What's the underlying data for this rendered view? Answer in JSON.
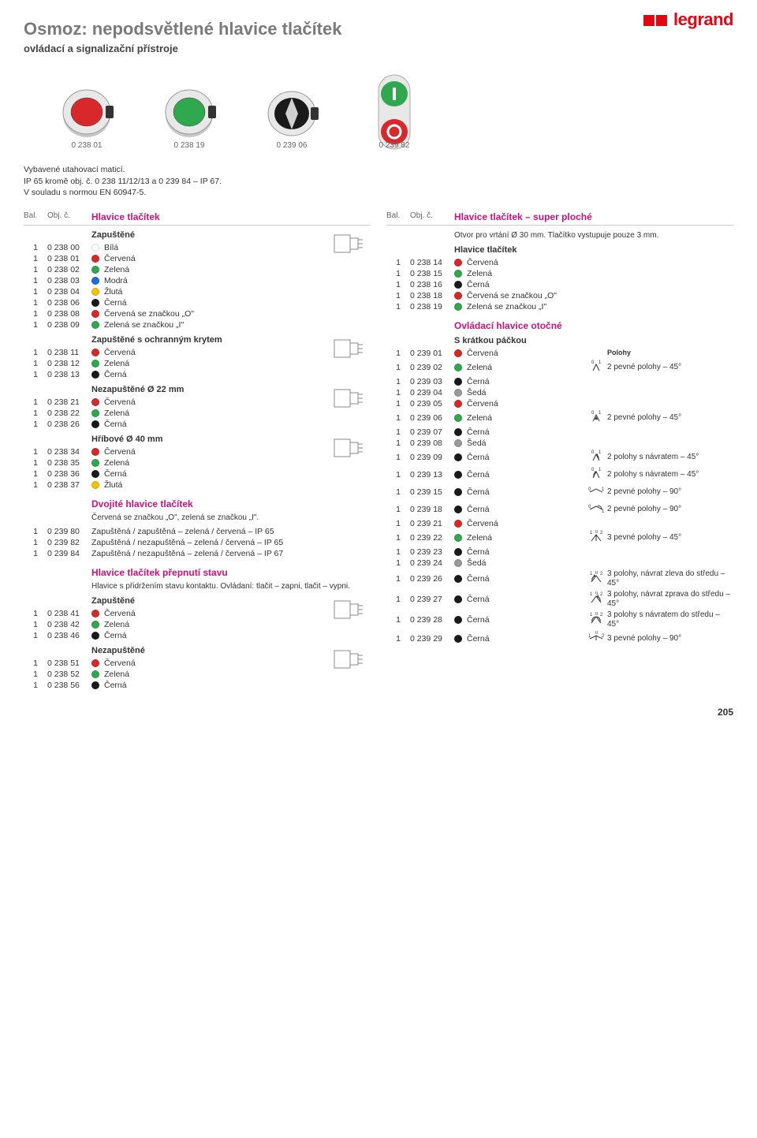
{
  "brand": "legrand",
  "title": "Osmoz: nepodsvětlené hlavice tlačítek",
  "subtitle": "ovládací a signalizační přístroje",
  "product_images": [
    {
      "label": "0 238 01",
      "kind": "button",
      "color": "#d9282b"
    },
    {
      "label": "0 238 19",
      "kind": "button",
      "color": "#2fa84f"
    },
    {
      "label": "0 239 06",
      "kind": "rotary",
      "color": "#2fa84f"
    },
    {
      "label": "0 239 82",
      "kind": "double",
      "color": "#2fa84f"
    }
  ],
  "intro1": "Vybavené utahovací maticí.",
  "intro2": "IP 65 kromě obj. č. 0 238 11/12/13 a 0 239 84 – IP 67.",
  "intro3": "V souladu s normou EN 60947-5.",
  "head_bal": "Bal.",
  "head_obj": "Obj. č.",
  "left_header": "Hlavice tlačítek",
  "right_header": "Hlavice tlačítek – super ploché",
  "colors": {
    "bila": "#ffffff",
    "cervena": "#d9282b",
    "zelena": "#2fa84f",
    "modra": "#1e6fd6",
    "zluta": "#f5c400",
    "cerna": "#1a1a1a",
    "seda": "#9a9a9a"
  },
  "left": [
    {
      "type": "sub",
      "text": "Zapuštěné"
    },
    {
      "bal": "1",
      "obj": "0 238 00",
      "dot": "bila",
      "text": "Bílá"
    },
    {
      "bal": "1",
      "obj": "0 238 01",
      "dot": "cervena",
      "text": "Červená"
    },
    {
      "bal": "1",
      "obj": "0 238 02",
      "dot": "zelena",
      "text": "Zelená"
    },
    {
      "bal": "1",
      "obj": "0 238 03",
      "dot": "modra",
      "text": "Modrá"
    },
    {
      "bal": "1",
      "obj": "0 238 04",
      "dot": "zluta",
      "text": "Žlutá"
    },
    {
      "bal": "1",
      "obj": "0 238 06",
      "dot": "cerna",
      "text": "Černá"
    },
    {
      "bal": "1",
      "obj": "0 238 08",
      "dot": "cervena",
      "text": "Červená se značkou „O\""
    },
    {
      "bal": "1",
      "obj": "0 238 09",
      "dot": "zelena",
      "text": "Zelená se značkou „I\""
    },
    {
      "type": "sub",
      "text": "Zapuštěné s ochranným krytem"
    },
    {
      "bal": "1",
      "obj": "0 238 11",
      "dot": "cervena",
      "text": "Červená"
    },
    {
      "bal": "1",
      "obj": "0 238 12",
      "dot": "zelena",
      "text": "Zelená"
    },
    {
      "bal": "1",
      "obj": "0 238 13",
      "dot": "cerna",
      "text": "Černá"
    },
    {
      "type": "sub",
      "text": "Nezapuštěné Ø 22 mm"
    },
    {
      "bal": "1",
      "obj": "0 238 21",
      "dot": "cervena",
      "text": "Červená"
    },
    {
      "bal": "1",
      "obj": "0 238 22",
      "dot": "zelena",
      "text": "Zelená"
    },
    {
      "bal": "1",
      "obj": "0 238 26",
      "dot": "cerna",
      "text": "Černá"
    },
    {
      "type": "sub",
      "text": "Hříbové Ø 40 mm"
    },
    {
      "bal": "1",
      "obj": "0 238 34",
      "dot": "cervena",
      "text": "Červená"
    },
    {
      "bal": "1",
      "obj": "0 238 35",
      "dot": "zelena",
      "text": "Zelená"
    },
    {
      "bal": "1",
      "obj": "0 238 36",
      "dot": "cerna",
      "text": "Černá"
    },
    {
      "bal": "1",
      "obj": "0 238 37",
      "dot": "zluta",
      "text": "Žlutá"
    },
    {
      "type": "sect",
      "text": "Dvojité hlavice tlačítek"
    },
    {
      "type": "note",
      "text": "Červená se značkou „O\", zelená se značkou „I\"."
    },
    {
      "bal": "1",
      "obj": "0 239 80",
      "text": "Zapuštěná / zapuštěná – zelená / červená – IP 65"
    },
    {
      "bal": "1",
      "obj": "0 239 82",
      "text": "Zapuštěná / nezapuštěná – zelená / červená – IP 65"
    },
    {
      "bal": "1",
      "obj": "0 239 84",
      "text": "Zapuštěná / nezapuštěná – zelená / červená – IP 67"
    },
    {
      "type": "sect",
      "text": "Hlavice tlačítek přepnutí stavu"
    },
    {
      "type": "note",
      "text": "Hlavice s přidržením stavu kontaktu. Ovládaní: tlačit – zapni, tlačit – vypni."
    },
    {
      "type": "sub",
      "text": "Zapuštěné"
    },
    {
      "bal": "1",
      "obj": "0 238 41",
      "dot": "cervena",
      "text": "Červená"
    },
    {
      "bal": "1",
      "obj": "0 238 42",
      "dot": "zelena",
      "text": "Zelená"
    },
    {
      "bal": "1",
      "obj": "0 238 46",
      "dot": "cerna",
      "text": "Černá"
    },
    {
      "type": "sub",
      "text": "Nezapuštěné"
    },
    {
      "bal": "1",
      "obj": "0 238 51",
      "dot": "cervena",
      "text": "Červená"
    },
    {
      "bal": "1",
      "obj": "0 238 52",
      "dot": "zelena",
      "text": "Zelená"
    },
    {
      "bal": "1",
      "obj": "0 238 56",
      "dot": "cerna",
      "text": "Černá"
    }
  ],
  "right": [
    {
      "type": "note",
      "text": "Otvor pro vrtání Ø 30 mm. Tlačítko vystupuje pouze 3 mm."
    },
    {
      "type": "sub",
      "text": "Hlavice tlačítek"
    },
    {
      "bal": "1",
      "obj": "0 238 14",
      "dot": "cervena",
      "text": "Červená"
    },
    {
      "bal": "1",
      "obj": "0 238 15",
      "dot": "zelena",
      "text": "Zelená"
    },
    {
      "bal": "1",
      "obj": "0 238 16",
      "dot": "cerna",
      "text": "Černá"
    },
    {
      "bal": "1",
      "obj": "0 238 18",
      "dot": "cervena",
      "text": "Červená se značkou „O\""
    },
    {
      "bal": "1",
      "obj": "0 238 19",
      "dot": "zelena",
      "text": "Zelená se značkou „I\""
    },
    {
      "type": "sect",
      "text": "Ovládací hlavice otočné"
    },
    {
      "type": "sub",
      "text": "S krátkou páčkou"
    },
    {
      "bal": "1",
      "obj": "0 239 01",
      "dot": "cervena",
      "text": "Červená",
      "polohy_label": "Polohy"
    },
    {
      "bal": "1",
      "obj": "0 239 02",
      "dot": "zelena",
      "text": "Zelená",
      "sym": "v01",
      "desc": "2 pevné polohy – 45°"
    },
    {
      "bal": "1",
      "obj": "0 239 03",
      "dot": "cerna",
      "text": "Černá"
    },
    {
      "bal": "1",
      "obj": "0 239 04",
      "dot": "seda",
      "text": "Šedá"
    },
    {
      "bal": "1",
      "obj": "0 239 05",
      "dot": "cervena",
      "text": "Červená"
    },
    {
      "bal": "1",
      "obj": "0 239 06",
      "dot": "zelena",
      "text": "Zelená",
      "sym": "arrow01",
      "desc": "2 pevné polohy – 45°"
    },
    {
      "bal": "1",
      "obj": "0 239 07",
      "dot": "cerna",
      "text": "Černá"
    },
    {
      "bal": "1",
      "obj": "0 239 08",
      "dot": "seda",
      "text": "Šedá"
    },
    {
      "bal": "1",
      "obj": "0 239 09",
      "dot": "cerna",
      "text": "Černá",
      "sym": "ret01",
      "desc": "2 polohy s návratem – 45°"
    },
    {
      "bal": "1",
      "obj": "0 239 13",
      "dot": "cerna",
      "text": "Černá",
      "sym": "ret10",
      "desc": "2 polohy s návratem – 45°"
    },
    {
      "bal": "1",
      "obj": "0 239 15",
      "dot": "cerna",
      "text": "Černá",
      "sym": "v90",
      "desc": "2 pevné polohy – 90°"
    },
    {
      "bal": "1",
      "obj": "0 239 18",
      "dot": "cerna",
      "text": "Černá",
      "sym": "ret90",
      "desc": "2 pevné polohy – 90°"
    },
    {
      "bal": "1",
      "obj": "0 239 21",
      "dot": "cervena",
      "text": "Červená"
    },
    {
      "bal": "1",
      "obj": "0 239 22",
      "dot": "zelena",
      "text": "Zelená",
      "sym": "v102",
      "desc": "3 pevné polohy – 45°"
    },
    {
      "bal": "1",
      "obj": "0 239 23",
      "dot": "cerna",
      "text": "Černá"
    },
    {
      "bal": "1",
      "obj": "0 239 24",
      "dot": "seda",
      "text": "Šedá"
    },
    {
      "bal": "1",
      "obj": "0 239 26",
      "dot": "cerna",
      "text": "Černá",
      "sym": "retL",
      "desc": "3 polohy, návrat zleva do středu – 45°"
    },
    {
      "bal": "1",
      "obj": "0 239 27",
      "dot": "cerna",
      "text": "Černá",
      "sym": "retR",
      "desc": "3 polohy, návrat zprava do středu – 45°"
    },
    {
      "bal": "1",
      "obj": "0 239 28",
      "dot": "cerna",
      "text": "Černá",
      "sym": "retLR",
      "desc": "3 polohy s návratem do středu – 45°"
    },
    {
      "bal": "1",
      "obj": "0 239 29",
      "dot": "cerna",
      "text": "Černá",
      "sym": "v90_3",
      "desc": "3 pevné polohy – 90°"
    }
  ],
  "page_number": "205"
}
